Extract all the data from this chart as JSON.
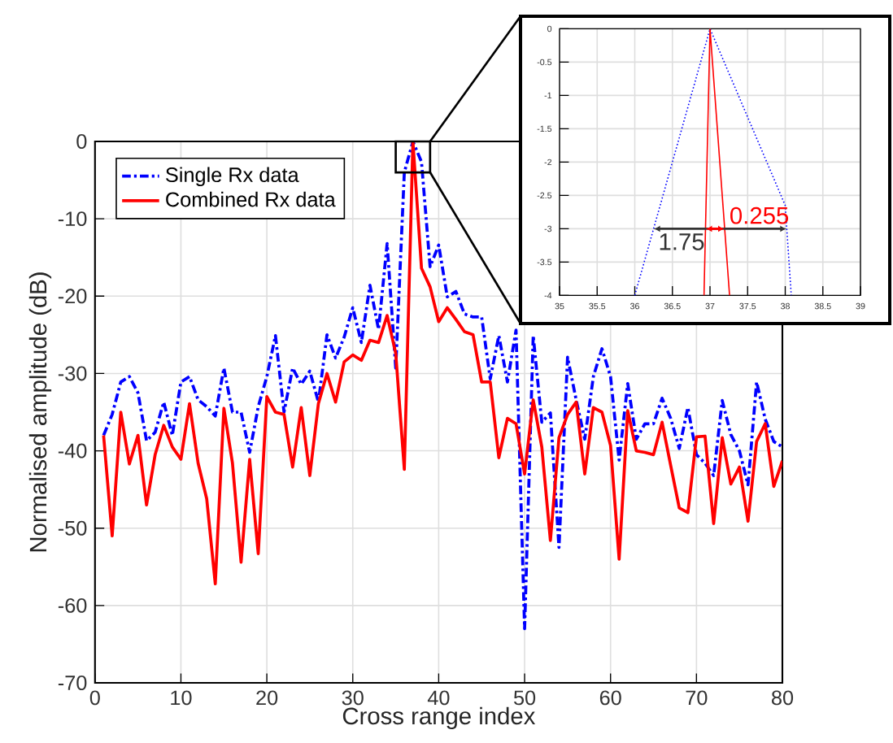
{
  "chart_data": [
    {
      "type": "line",
      "xlabel": "Cross range index",
      "ylabel": "Normalised amplitude (dB)",
      "x": [
        1,
        2,
        3,
        4,
        5,
        6,
        7,
        8,
        9,
        10,
        11,
        12,
        13,
        14,
        15,
        16,
        17,
        18,
        19,
        20,
        21,
        22,
        23,
        24,
        25,
        26,
        27,
        28,
        29,
        30,
        31,
        32,
        33,
        34,
        35,
        36,
        37,
        38,
        39,
        40,
        41,
        42,
        43,
        44,
        45,
        46,
        47,
        48,
        49,
        50,
        51,
        52,
        53,
        54,
        55,
        56,
        57,
        58,
        59,
        60,
        61,
        62,
        63,
        64,
        65,
        66,
        67,
        68,
        69,
        70,
        71,
        72,
        73,
        74,
        75,
        76,
        77,
        78,
        79,
        80
      ],
      "xlim": [
        0,
        80
      ],
      "xticks": [
        0,
        10,
        20,
        30,
        40,
        50,
        60,
        70,
        80
      ],
      "ylim": [
        -70,
        0
      ],
      "yticks": [
        -70,
        -60,
        -50,
        -40,
        -30,
        -20,
        -10,
        0
      ],
      "grid": true,
      "legend": "top left",
      "marker": "none",
      "series": [
        {
          "name": "Single Rx data",
          "color": "#0000ff",
          "line_style": "dashdot",
          "values": [
            -38,
            -35.3,
            -31.1,
            -30.4,
            -32.5,
            -38.7,
            -37.6,
            -33.7,
            -38,
            -31.1,
            -30.4,
            -33.4,
            -34.3,
            -35.5,
            -29.3,
            -35,
            -35,
            -40.2,
            -34.3,
            -30.4,
            -25.1,
            -35,
            -29.3,
            -31.4,
            -29.7,
            -33.7,
            -25,
            -28,
            -25.3,
            -21.5,
            -26,
            -18.6,
            -24.3,
            -13.2,
            -29.3,
            -4,
            0,
            -2.65,
            -16.2,
            -13.4,
            -20.1,
            -19.4,
            -22.3,
            -22.7,
            -22.7,
            -30.7,
            -25.1,
            -31.1,
            -24.4,
            -63,
            -25.1,
            -36.3,
            -35.1,
            -52.5,
            -27.9,
            -33.4,
            -38.5,
            -30.4,
            -26.8,
            -30.4,
            -41.2,
            -31.3,
            -38.5,
            -36.5,
            -36.5,
            -33.2,
            -35.8,
            -39.7,
            -34.4,
            -40.5,
            -41.6,
            -43.2,
            -33.5,
            -37.9,
            -40,
            -44.4,
            -31.1,
            -35.9,
            -38.8,
            -39.5
          ]
        },
        {
          "name": "Combined Rx data",
          "color": "#ff0000",
          "line_style": "solid",
          "values": [
            -38,
            -51,
            -35,
            -41.7,
            -38,
            -47,
            -40.5,
            -36.7,
            -39.5,
            -41.1,
            -33.9,
            -41.6,
            -46.2,
            -57.2,
            -34.5,
            -41.6,
            -54.4,
            -41.1,
            -53.3,
            -33,
            -35,
            -35.3,
            -42.1,
            -34.4,
            -43.2,
            -33.9,
            -30,
            -33.7,
            -28.5,
            -27.6,
            -28.3,
            -25.7,
            -26,
            -22.5,
            -27.4,
            -42.4,
            0,
            -16.4,
            -18.8,
            -23.3,
            -21.5,
            -23,
            -24.6,
            -25,
            -31.1,
            -31.1,
            -40.9,
            -35.8,
            -36.5,
            -43,
            -33.4,
            -39.5,
            -51.6,
            -38.3,
            -35.3,
            -33.7,
            -43,
            -34.4,
            -35,
            -39.3,
            -54,
            -34.8,
            -40,
            -40.2,
            -40.5,
            -36.3,
            -41.9,
            -47.4,
            -48,
            -38.2,
            -38.1,
            -49.4,
            -38.3,
            -44.3,
            -42.1,
            -49.1,
            -38.8,
            -36.5,
            -44.6,
            -41.3
          ]
        }
      ]
    },
    {
      "type": "line",
      "xlim": [
        35,
        39
      ],
      "xticks": [
        35,
        35.5,
        36,
        36.5,
        37,
        37.5,
        38,
        38.5,
        39
      ],
      "ylim": [
        -4,
        0
      ],
      "yticks": [
        -4,
        -3.5,
        -3,
        -2.5,
        -2,
        -1.5,
        -1,
        -0.5,
        0
      ],
      "grid": true,
      "marker": "none",
      "series": [
        {
          "color": "#0000ff",
          "line_style": "dotted",
          "x": [
            36,
            36.25,
            37,
            38,
            38.02,
            38.08
          ],
          "values": [
            -4,
            -3,
            0,
            -2.65,
            -3,
            -4
          ]
        },
        {
          "color": "#ff0000",
          "line_style": "solid",
          "x": [
            36.92,
            36.94,
            37,
            37.195,
            37.26
          ],
          "values": [
            -4,
            -3,
            0,
            -3,
            -4
          ]
        }
      ],
      "annotations": [
        {
          "text": "1.75",
          "x": 36.25,
          "y": -3
        },
        {
          "text": "0.255",
          "x": 37.195,
          "y": -3
        }
      ]
    }
  ]
}
